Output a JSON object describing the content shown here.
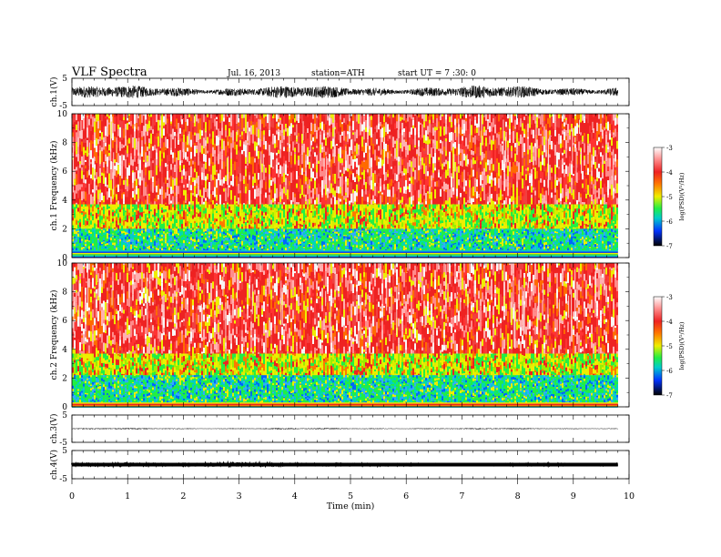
{
  "header": {
    "title": "VLF Spectra",
    "date": "Jul. 16, 2013",
    "station": "station=ATH",
    "start_ut": "start UT = 7 :30: 0"
  },
  "colorbar_ticks": [
    "-3",
    "-4",
    "-5",
    "-6",
    "-7"
  ],
  "colorbar_label": "log(PSD)(V²/Hz)",
  "colors": {
    "psd_high": "#f8f8f8",
    "psd_red": "#ee2222",
    "psd_yellow": "#eeee00",
    "psd_green": "#22ee44",
    "psd_blue": "#0044ff",
    "psd_low": "#000000"
  },
  "chart_data": [
    {
      "type": "line",
      "panel": "ch1-waveform",
      "ylabel": "ch.1(V)",
      "ylim": [
        -5,
        5
      ],
      "yticks": [
        "5",
        "-5"
      ],
      "xlim": [
        0,
        10
      ],
      "x_end": 9.8,
      "amplitude": 1.5
    },
    {
      "type": "heatmap",
      "panel": "ch1-spectrogram",
      "ylabel": "ch.1 Frequency (kHz)",
      "ylim": [
        0,
        10
      ],
      "yticks": [
        "10",
        "8",
        "6",
        "4",
        "2",
        "0"
      ],
      "xlim": [
        0,
        10
      ],
      "x_end": 9.8,
      "colorbar_range": [
        -7,
        -3
      ],
      "bands": [
        {
          "from_khz": 3.7,
          "to_khz": 10,
          "color": "red"
        },
        {
          "from_khz": 2.0,
          "to_khz": 3.7,
          "color": "yellow-green"
        },
        {
          "from_khz": 0.5,
          "to_khz": 2.0,
          "color": "green-cyan"
        },
        {
          "from_khz": 0,
          "to_khz": 0.5,
          "color": "mixed"
        }
      ]
    },
    {
      "type": "heatmap",
      "panel": "ch2-spectrogram",
      "ylabel": "ch.2 Frequency (kHz)",
      "ylim": [
        0,
        10
      ],
      "yticks": [
        "10",
        "8",
        "6",
        "4",
        "2",
        "0"
      ],
      "xlim": [
        0,
        10
      ],
      "x_end": 9.8,
      "colorbar_range": [
        -7,
        -3
      ],
      "bands": [
        {
          "from_khz": 3.7,
          "to_khz": 10,
          "color": "red"
        },
        {
          "from_khz": 2.2,
          "to_khz": 3.7,
          "color": "yellow-green"
        },
        {
          "from_khz": 0.3,
          "to_khz": 2.2,
          "color": "green-cyan"
        },
        {
          "from_khz": 0,
          "to_khz": 0.3,
          "color": "mixed"
        }
      ]
    },
    {
      "type": "line",
      "panel": "ch3-waveform",
      "ylabel": "ch.3(V)",
      "ylim": [
        -5,
        5
      ],
      "yticks": [
        "5",
        "-5"
      ],
      "xlim": [
        0,
        10
      ],
      "x_end": 9.8,
      "amplitude": 0.15
    },
    {
      "type": "line",
      "panel": "ch4-waveform",
      "ylabel": "ch.4(V)",
      "ylim": [
        -5,
        5
      ],
      "yticks": [
        "5",
        "-5"
      ],
      "xlim": [
        0,
        10
      ],
      "x_end": 9.8,
      "amplitude": 0.4
    }
  ],
  "x_axis": {
    "label": "Time (min)",
    "ticks": [
      "0",
      "1",
      "2",
      "3",
      "4",
      "5",
      "6",
      "7",
      "8",
      "9",
      "10"
    ]
  }
}
